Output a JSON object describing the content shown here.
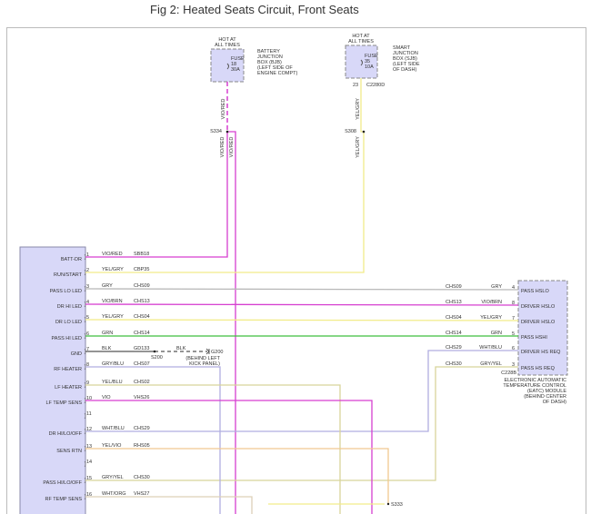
{
  "title": "Fig 2: Heated Seats Circuit, Front Seats",
  "fuses": [
    {
      "hot": [
        "HOT AT",
        "ALL TIMES"
      ],
      "fuse": [
        "FUSE",
        "18",
        "30A"
      ],
      "location": [
        "BATTERY",
        "JUNCTION",
        "BOX (BJB)",
        "(LEFT SIDE OF",
        "ENGINE COMPT)"
      ],
      "wire": "VIO/RED",
      "splice": "S334"
    },
    {
      "hot": [
        "HOT AT",
        "ALL TIMES"
      ],
      "fuse": [
        "FUSE",
        "35",
        "10A"
      ],
      "location": [
        "SMART",
        "JUNCTION",
        "BOX (SJB)",
        "(LEFT SIDE",
        "OF DASH)"
      ],
      "pin": "23",
      "connector": "C2280D",
      "wire": "YEL/GRY",
      "splice": "S308"
    }
  ],
  "splice_branch_wires": [
    "VIO/RED",
    "VIO/RED"
  ],
  "module_pins": [
    {
      "pin": "1",
      "label": "BATT-DR",
      "color": "VIO/RED",
      "circuit": "SBB18"
    },
    {
      "pin": "2",
      "label": "RUN/START",
      "color": "YEL/GRY",
      "circuit": "CBP35"
    },
    {
      "pin": "3",
      "label": "PASS LO LED",
      "color": "GRY",
      "circuit": "CHS09"
    },
    {
      "pin": "4",
      "label": "DR HI LED",
      "color": "VIO/BRN",
      "circuit": "CHS13"
    },
    {
      "pin": "5",
      "label": "DR LO LED",
      "color": "YEL/GRY",
      "circuit": "CHS04"
    },
    {
      "pin": "6",
      "label": "PASS HI LED",
      "color": "GRN",
      "circuit": "CHS14"
    },
    {
      "pin": "7",
      "label": "GND",
      "color": "BLK",
      "circuit": "GD133"
    },
    {
      "pin": "8",
      "label": "RF HEATER",
      "color": "GRY/BLU",
      "circuit": "CHS07"
    },
    {
      "pin": "9",
      "label": "LF HEATER",
      "color": "YEL/BLU",
      "circuit": "CHS02"
    },
    {
      "pin": "10",
      "label": "LF TEMP SENS",
      "color": "VIO",
      "circuit": "VHS26"
    },
    {
      "pin": "11",
      "label": "",
      "color": "",
      "circuit": ""
    },
    {
      "pin": "12",
      "label": "DR HI/LO/OFF",
      "color": "WHT/BLU",
      "circuit": "CHS29"
    },
    {
      "pin": "13",
      "label": "SENS RTN",
      "color": "YEL/VIO",
      "circuit": "RHS05"
    },
    {
      "pin": "14",
      "label": "",
      "color": "",
      "circuit": ""
    },
    {
      "pin": "15",
      "label": "PASS HI/LO/OFF",
      "color": "GRY/YEL",
      "circuit": "CHS30"
    },
    {
      "pin": "16",
      "label": "RF TEMP SENS",
      "color": "WHT/ORG",
      "circuit": "VHS27"
    }
  ],
  "ground": {
    "splice": "S200",
    "wire": "BLK",
    "ground": "G200",
    "location": [
      "(BEHIND LEFT",
      "KICK PANEL)"
    ]
  },
  "eatc": {
    "pins": [
      {
        "pin": "4",
        "label": "PASS HSLO",
        "color": "GRY",
        "circuit": "CHS09"
      },
      {
        "pin": "8",
        "label": "DRIVER HSLO",
        "color": "VIO/BRN",
        "circuit": "CHS13"
      },
      {
        "pin": "7",
        "label": "DRIVER HSLO",
        "color": "YEL/GRY",
        "circuit": "CHS04"
      },
      {
        "pin": "5",
        "label": "PASS HSHI",
        "color": "GRN",
        "circuit": "CHS14"
      },
      {
        "pin": "6",
        "label": "DRIVER HS REQ",
        "color": "WHT/BLU",
        "circuit": "CHS29"
      },
      {
        "pin": "3",
        "label": "PASS HS REQ",
        "color": "GRY/YEL",
        "circuit": "CHS30"
      }
    ],
    "connector": "C228B",
    "name": [
      "ELECTRONIC AUTOMATIC",
      "TEMPERATURE CONTROL",
      "(EATC) MODULE",
      "(BEHIND CENTER",
      "OF DASH)"
    ]
  },
  "bottom_splice": "S333",
  "colors": {
    "magenta": "#d63fd0",
    "yellow": "#f2ec8a",
    "gray": "#b8b8b8",
    "lavender": "#b0aee0",
    "green": "#3fbf3f",
    "black": "#555555",
    "orange": "#f0c890",
    "tan": "#ddd0b8",
    "olive": "#d8d49a",
    "module_fill": "#d8d8f8"
  }
}
